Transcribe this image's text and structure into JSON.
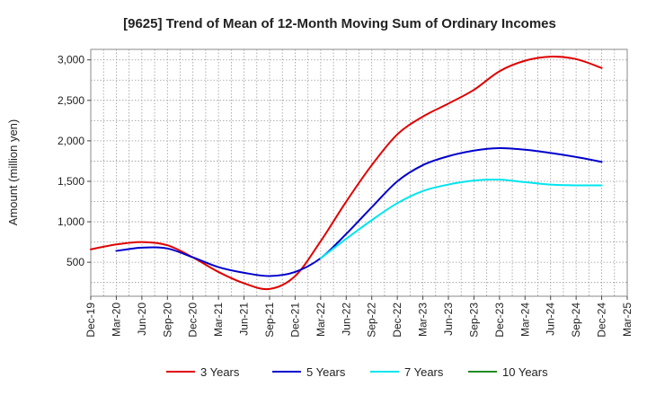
{
  "chart_data": {
    "type": "line",
    "title": "[9625]  Trend of Mean of 12-Month Moving Sum of Ordinary Incomes",
    "ylabel": "Amount (million yen)",
    "xlabel": "",
    "ylim": [
      80,
      3130
    ],
    "yticks": [
      500,
      1000,
      1500,
      2000,
      2500,
      3000
    ],
    "ytick_labels": [
      "500",
      "1,000",
      "1,500",
      "2,000",
      "2,500",
      "3,000"
    ],
    "xtick_labels": [
      "Dec-19",
      "Mar-20",
      "Jun-20",
      "Sep-20",
      "Dec-20",
      "Mar-21",
      "Jun-21",
      "Sep-21",
      "Dec-21",
      "Mar-22",
      "Jun-22",
      "Sep-22",
      "Dec-22",
      "Mar-23",
      "Jun-23",
      "Sep-23",
      "Dec-23",
      "Mar-24",
      "Jun-24",
      "Sep-24",
      "Dec-24",
      "Mar-25"
    ],
    "grid": true,
    "legend_position": "bottom",
    "series": [
      {
        "name": "3 Years",
        "color": "#e00000",
        "start_index": 0,
        "values": [
          660,
          720,
          750,
          710,
          560,
          380,
          240,
          170,
          330,
          760,
          1250,
          1700,
          2080,
          2300,
          2460,
          2630,
          2860,
          2990,
          3040,
          3010,
          2900
        ]
      },
      {
        "name": "5 Years",
        "color": "#0000cc",
        "start_index": 1,
        "values": [
          640,
          680,
          670,
          560,
          440,
          370,
          330,
          380,
          550,
          850,
          1180,
          1500,
          1700,
          1810,
          1880,
          1910,
          1890,
          1850,
          1800,
          1740
        ]
      },
      {
        "name": "7 Years",
        "color": "#00e5ee",
        "start_index": 9,
        "values": [
          550,
          790,
          1020,
          1230,
          1380,
          1460,
          1510,
          1520,
          1490,
          1460,
          1450,
          1450
        ]
      },
      {
        "name": "10 Years",
        "color": "#228b22",
        "start_index": 0,
        "values": []
      }
    ]
  }
}
